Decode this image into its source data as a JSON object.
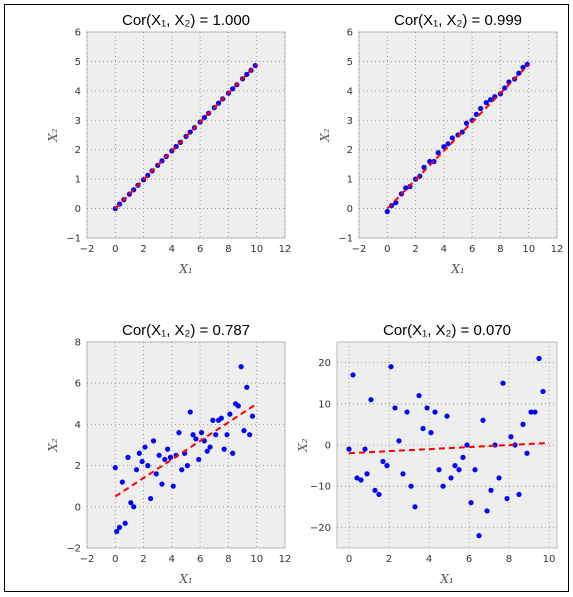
{
  "chart_data": [
    {
      "type": "scatter",
      "title": "Cor(X₁, X₂) = 1.000",
      "xlabel": "X₁",
      "ylabel": "X₂",
      "xlim": [
        -2,
        12
      ],
      "ylim": [
        -1,
        6
      ],
      "xticks": [
        -2,
        0,
        2,
        4,
        6,
        8,
        10,
        12
      ],
      "yticks": [
        -1,
        0,
        1,
        2,
        3,
        4,
        5,
        6
      ],
      "grid": true,
      "point_color": "#0000ff",
      "fit_color": "#ff0000",
      "series": [
        {
          "x": [
            0.0,
            0.3,
            0.6,
            1.0,
            1.3,
            1.6,
            2.0,
            2.3,
            2.6,
            3.0,
            3.3,
            3.6,
            4.0,
            4.3,
            4.6,
            5.0,
            5.3,
            5.6,
            6.0,
            6.3,
            6.6,
            7.0,
            7.3,
            7.6,
            8.0,
            8.3,
            8.6,
            9.0,
            9.3,
            9.6,
            9.9
          ],
          "y": [
            0.0,
            0.15,
            0.3,
            0.49,
            0.64,
            0.79,
            0.98,
            1.13,
            1.28,
            1.47,
            1.62,
            1.77,
            1.96,
            2.11,
            2.25,
            2.45,
            2.6,
            2.75,
            2.94,
            3.09,
            3.24,
            3.43,
            3.58,
            3.73,
            3.92,
            4.07,
            4.21,
            4.41,
            4.56,
            4.7,
            4.86
          ]
        }
      ],
      "fit": {
        "x": [
          0,
          10
        ],
        "y": [
          0,
          4.9
        ]
      }
    },
    {
      "type": "scatter",
      "title": "Cor(X₁, X₂) = 0.999",
      "xlabel": "X₁",
      "ylabel": "X₂",
      "xlim": [
        -2,
        12
      ],
      "ylim": [
        -1,
        6
      ],
      "xticks": [
        -2,
        0,
        2,
        4,
        6,
        8,
        10,
        12
      ],
      "yticks": [
        -1,
        0,
        1,
        2,
        3,
        4,
        5,
        6
      ],
      "grid": true,
      "point_color": "#0000ff",
      "fit_color": "#ff0000",
      "series": [
        {
          "x": [
            0.0,
            0.3,
            0.6,
            1.0,
            1.3,
            1.6,
            2.0,
            2.3,
            2.6,
            3.0,
            3.3,
            3.6,
            4.0,
            4.3,
            4.6,
            5.0,
            5.3,
            5.6,
            6.0,
            6.3,
            6.6,
            7.0,
            7.3,
            7.6,
            8.0,
            8.3,
            8.6,
            9.0,
            9.3,
            9.6,
            9.9
          ],
          "y": [
            -0.1,
            0.1,
            0.2,
            0.5,
            0.7,
            0.75,
            1.0,
            1.1,
            1.4,
            1.6,
            1.6,
            1.9,
            2.1,
            2.2,
            2.4,
            2.5,
            2.6,
            2.9,
            3.0,
            3.2,
            3.4,
            3.6,
            3.7,
            3.8,
            3.9,
            4.1,
            4.3,
            4.4,
            4.6,
            4.8,
            4.9
          ]
        }
      ],
      "fit": {
        "x": [
          0,
          10
        ],
        "y": [
          0,
          4.9
        ]
      }
    },
    {
      "type": "scatter",
      "title": "Cor(X₁, X₂) = 0.787",
      "xlabel": "X₁",
      "ylabel": "X₂",
      "xlim": [
        -2,
        12
      ],
      "ylim": [
        -2,
        8
      ],
      "xticks": [
        -2,
        0,
        2,
        4,
        6,
        8,
        10,
        12
      ],
      "yticks": [
        -2,
        0,
        2,
        4,
        6,
        8
      ],
      "grid": true,
      "point_color": "#0000ff",
      "fit_color": "#ff0000",
      "series": [
        {
          "x": [
            0.0,
            0.1,
            0.3,
            0.5,
            0.7,
            0.9,
            1.1,
            1.3,
            1.5,
            1.7,
            1.9,
            2.1,
            2.3,
            2.5,
            2.7,
            2.9,
            3.1,
            3.3,
            3.5,
            3.7,
            3.9,
            4.1,
            4.3,
            4.5,
            4.7,
            4.9,
            5.1,
            5.3,
            5.5,
            5.7,
            5.9,
            6.1,
            6.3,
            6.5,
            6.7,
            6.9,
            7.1,
            7.3,
            7.5,
            7.7,
            7.9,
            8.1,
            8.3,
            8.5,
            8.7,
            8.9,
            9.1,
            9.3,
            9.5,
            9.7
          ],
          "y": [
            1.9,
            -1.2,
            -1.0,
            1.2,
            -0.8,
            2.4,
            0.2,
            0.0,
            1.8,
            2.6,
            2.2,
            2.9,
            2.0,
            0.4,
            3.2,
            1.6,
            2.5,
            1.1,
            2.3,
            2.8,
            2.4,
            1.0,
            2.5,
            3.6,
            1.8,
            2.6,
            2.0,
            4.6,
            3.5,
            3.3,
            2.3,
            3.6,
            3.2,
            2.7,
            2.9,
            4.2,
            3.5,
            4.2,
            4.3,
            2.8,
            3.5,
            4.5,
            2.6,
            5.0,
            4.9,
            6.8,
            3.7,
            5.8,
            3.5,
            4.4
          ]
        }
      ],
      "fit": {
        "x": [
          0,
          10
        ],
        "y": [
          0.5,
          5.0
        ]
      }
    },
    {
      "type": "scatter",
      "title": "Cor(X₁, X₂) = 0.070",
      "xlabel": "X₁",
      "ylabel": "X₂",
      "xlim": [
        -0.6,
        10.4
      ],
      "ylim": [
        -25,
        25
      ],
      "xticks": [
        0,
        2,
        4,
        6,
        8,
        10
      ],
      "yticks": [
        -20,
        -10,
        0,
        10,
        20
      ],
      "grid": true,
      "point_color": "#0000ff",
      "fit_color": "#ff0000",
      "series": [
        {
          "x": [
            0.0,
            0.2,
            0.4,
            0.6,
            0.8,
            0.9,
            1.1,
            1.3,
            1.5,
            1.7,
            1.9,
            2.1,
            2.3,
            2.5,
            2.7,
            2.9,
            3.1,
            3.3,
            3.5,
            3.7,
            3.9,
            4.1,
            4.3,
            4.5,
            4.7,
            4.9,
            5.1,
            5.3,
            5.5,
            5.7,
            5.9,
            6.1,
            6.3,
            6.5,
            6.7,
            6.9,
            7.1,
            7.3,
            7.5,
            7.7,
            7.9,
            8.1,
            8.3,
            8.5,
            8.7,
            8.9,
            9.1,
            9.3,
            9.5,
            9.7
          ],
          "y": [
            -1,
            17,
            -8,
            -8.5,
            -1,
            -7,
            11,
            -11,
            -12,
            -4,
            -5,
            19,
            9,
            1,
            -7,
            8,
            -10,
            -15,
            12,
            4,
            9,
            3,
            8,
            -6,
            -10,
            7,
            -8,
            -5,
            -6,
            -3,
            0,
            -14,
            -6,
            -22,
            6,
            -16,
            -11,
            0,
            -8,
            15,
            -13,
            2,
            0,
            -12,
            5,
            -2,
            8,
            8,
            21,
            13
          ]
        }
      ],
      "fit": {
        "x": [
          0,
          10
        ],
        "y": [
          -2,
          0.5
        ]
      }
    }
  ]
}
